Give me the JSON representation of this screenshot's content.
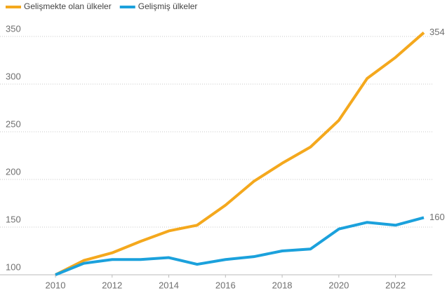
{
  "chart_data": {
    "type": "line",
    "x": [
      2010,
      2011,
      2012,
      2013,
      2014,
      2015,
      2016,
      2017,
      2018,
      2019,
      2020,
      2021,
      2022,
      2023
    ],
    "series": [
      {
        "name": "Gelişmekte olan ülkeler",
        "color": "#f4a81d",
        "values": [
          100,
          115,
          123,
          135,
          146,
          152,
          173,
          198,
          217,
          234,
          262,
          306,
          328,
          354
        ]
      },
      {
        "name": "Gelişmiş ülkeler",
        "color": "#1ba1dc",
        "values": [
          100,
          112,
          116,
          116,
          118,
          111,
          116,
          119,
          125,
          127,
          148,
          155,
          152,
          160
        ]
      }
    ],
    "xlim": [
      2010,
      2023
    ],
    "xticks": [
      2010,
      2012,
      2014,
      2016,
      2018,
      2020,
      2022
    ],
    "ylim": [
      100,
      360
    ],
    "yticks": [
      100,
      150,
      200,
      250,
      300,
      350
    ],
    "grid": true,
    "legend": "top-left"
  }
}
